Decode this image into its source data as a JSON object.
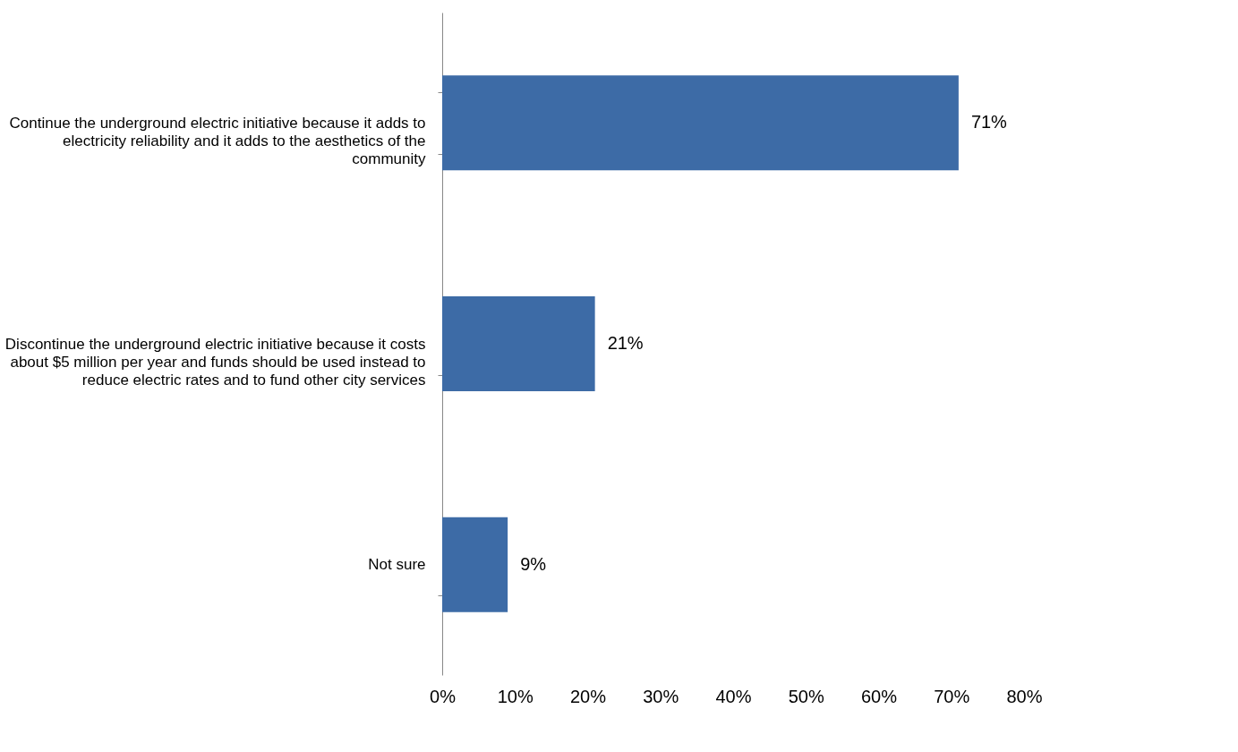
{
  "chart_data": {
    "type": "bar",
    "orientation": "horizontal",
    "categories": [
      "Continue the underground electric initiative because it adds to\nelectricity reliability and it adds  to the aesthetics of the\ncommunity",
      "Discontinue the underground electric initiative because it costs\nabout $5 million per year and funds should be used instead to\nreduce electric rates and to fund other city services",
      "Not sure"
    ],
    "values": [
      71,
      21,
      9
    ],
    "value_labels": [
      "71%",
      "21%",
      "9%"
    ],
    "color": "#3d6ba6",
    "xlim": [
      0,
      80
    ],
    "xticks": [
      {
        "value": 0,
        "label": "0%"
      },
      {
        "value": 10,
        "label": "10%"
      },
      {
        "value": 20,
        "label": "20%"
      },
      {
        "value": 30,
        "label": "30%"
      },
      {
        "value": 40,
        "label": "40%"
      },
      {
        "value": 50,
        "label": "50%"
      },
      {
        "value": 60,
        "label": "60%"
      },
      {
        "value": 70,
        "label": "70%"
      },
      {
        "value": 80,
        "label": "80%"
      }
    ],
    "grid": false
  }
}
